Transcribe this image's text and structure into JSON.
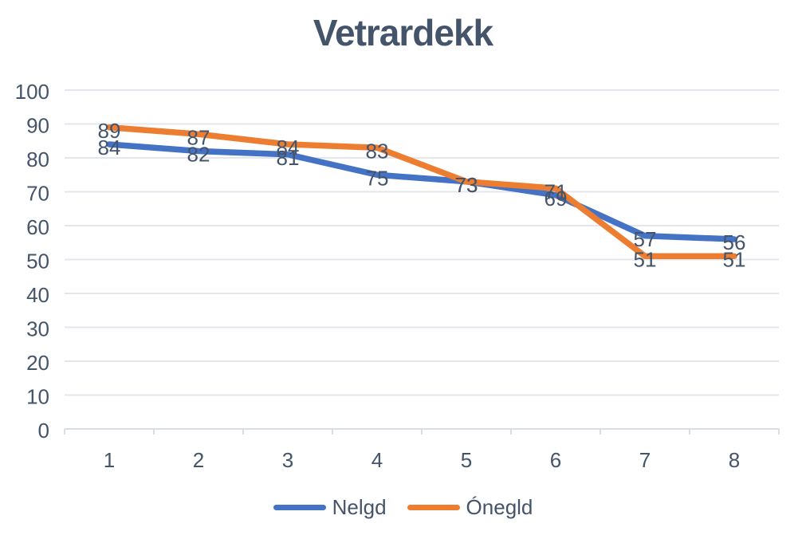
{
  "title": "Vetrardekk",
  "colors": {
    "series_blue": "#4472C4",
    "series_orange": "#ED7D31",
    "text": "#44546A",
    "gridline": "#E3E7ED",
    "axis": "#D9DEE5",
    "background": "#FFFFFF"
  },
  "chart_data": {
    "type": "line",
    "title": "Vetrardekk",
    "categories": [
      "1",
      "2",
      "3",
      "4",
      "5",
      "6",
      "7",
      "8"
    ],
    "series": [
      {
        "name": "Nelgd",
        "color": "#4472C4",
        "values": [
          84,
          82,
          81,
          75,
          73,
          69,
          57,
          56
        ]
      },
      {
        "name": "Ónegld",
        "color": "#ED7D31",
        "values": [
          89,
          87,
          84,
          83,
          73,
          71,
          51,
          51
        ]
      }
    ],
    "xlabel": "",
    "ylabel": "",
    "ylim": [
      0,
      100
    ],
    "y_ticks": [
      0,
      10,
      20,
      30,
      40,
      50,
      60,
      70,
      80,
      90,
      100
    ],
    "grid": true,
    "data_labels": true,
    "legend_position": "bottom"
  }
}
